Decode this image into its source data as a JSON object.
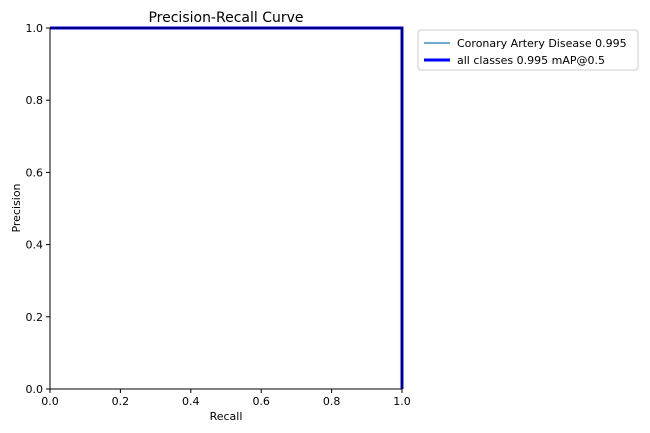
{
  "chart_data": {
    "type": "line",
    "title": "Precision-Recall Curve",
    "xlabel": "Recall",
    "ylabel": "Precision",
    "xlim": [
      0,
      1
    ],
    "ylim": [
      0,
      1
    ],
    "xticks": [
      "0.0",
      "0.2",
      "0.4",
      "0.6",
      "0.8",
      "1.0"
    ],
    "yticks": [
      "0.0",
      "0.2",
      "0.4",
      "0.6",
      "0.8",
      "1.0"
    ],
    "grid": false,
    "legend_position": "outside-top-right",
    "series": [
      {
        "name": "Coronary Artery Disease 0.995",
        "color": "#1f77b4",
        "x": [
          0,
          1,
          1
        ],
        "y": [
          1,
          1,
          0
        ]
      },
      {
        "name": "all classes 0.995 mAP@0.5",
        "color": "#0000ff",
        "x": [
          0,
          1,
          1
        ],
        "y": [
          1,
          1,
          0
        ]
      }
    ]
  }
}
